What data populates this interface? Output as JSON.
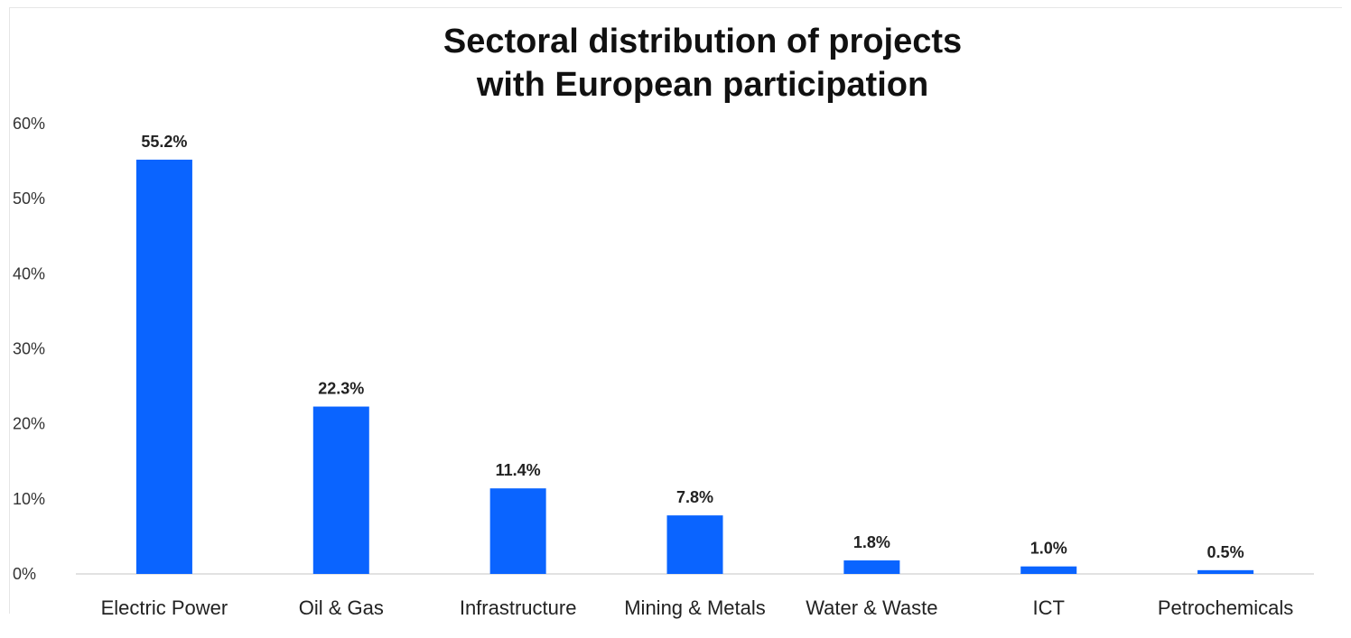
{
  "chart_data": {
    "type": "bar",
    "title_lines": [
      "Sectoral distribution of projects",
      "with European participation"
    ],
    "categories": [
      "Electric Power",
      "Oil & Gas",
      "Infrastructure",
      "Mining & Metals",
      "Water & Waste",
      "ICT",
      "Petrochemicals"
    ],
    "values": [
      55.2,
      22.3,
      11.4,
      7.8,
      1.8,
      1.0,
      0.5
    ],
    "data_labels": [
      "55.2%",
      "22.3%",
      "11.4%",
      "7.8%",
      "1.8%",
      "1.0%",
      "0.5%"
    ],
    "y_ticks": [
      0,
      10,
      20,
      30,
      40,
      50,
      60
    ],
    "y_tick_labels": [
      "0%",
      "10%",
      "20%",
      "30%",
      "40%",
      "50%",
      "60%"
    ],
    "ylim": [
      0,
      60
    ],
    "grid": false,
    "legend": "none",
    "bar_color": "#0a64ff"
  }
}
